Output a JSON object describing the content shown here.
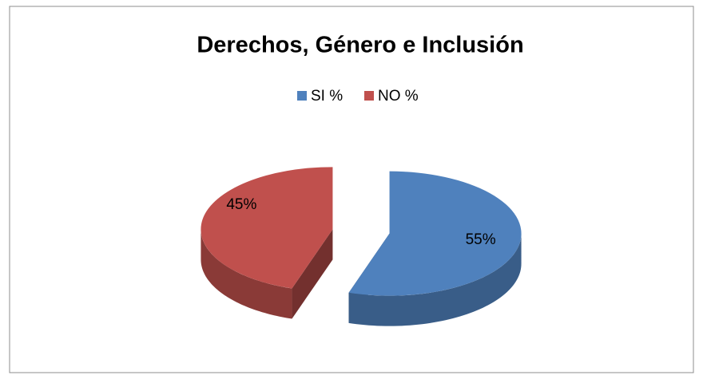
{
  "chart_data": {
    "type": "pie",
    "title": "Derechos, Género e Inclusión",
    "series": [
      {
        "name": "SI %",
        "color": "#4f81bd",
        "values": [
          55
        ],
        "value_labels": [
          "55%"
        ]
      },
      {
        "name": "NO %",
        "color": "#c0504d",
        "values": [
          45
        ],
        "value_labels": [
          "45%"
        ]
      }
    ],
    "legend": "top"
  }
}
